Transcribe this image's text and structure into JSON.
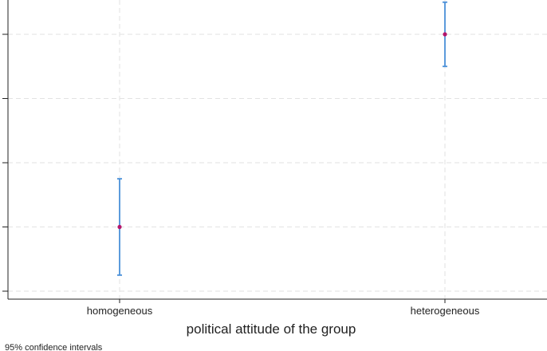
{
  "chart_data": {
    "type": "scatter",
    "subtype": "point-estimate-with-error-bars",
    "categories": [
      "homogeneous",
      "heterogeneous"
    ],
    "series": [
      {
        "values": [
          1.0,
          4.0
        ],
        "ci_lower": [
          0.25,
          3.5
        ],
        "ci_upper": [
          1.75,
          4.5
        ]
      }
    ],
    "xlabel": "political attitude of the group",
    "ylabel": "",
    "ylim": [
      0.0,
      4.5
    ],
    "y_gridlines": [
      0.0,
      1.0,
      2.0,
      3.0,
      4.0
    ],
    "y_tick_labels_visible": false,
    "grid": true,
    "note": "95% confidence intervals",
    "colors": {
      "point": "#b5166b",
      "error_bar": "#4a90d9",
      "grid": "#e2e2e2",
      "axis": "#222222"
    }
  }
}
